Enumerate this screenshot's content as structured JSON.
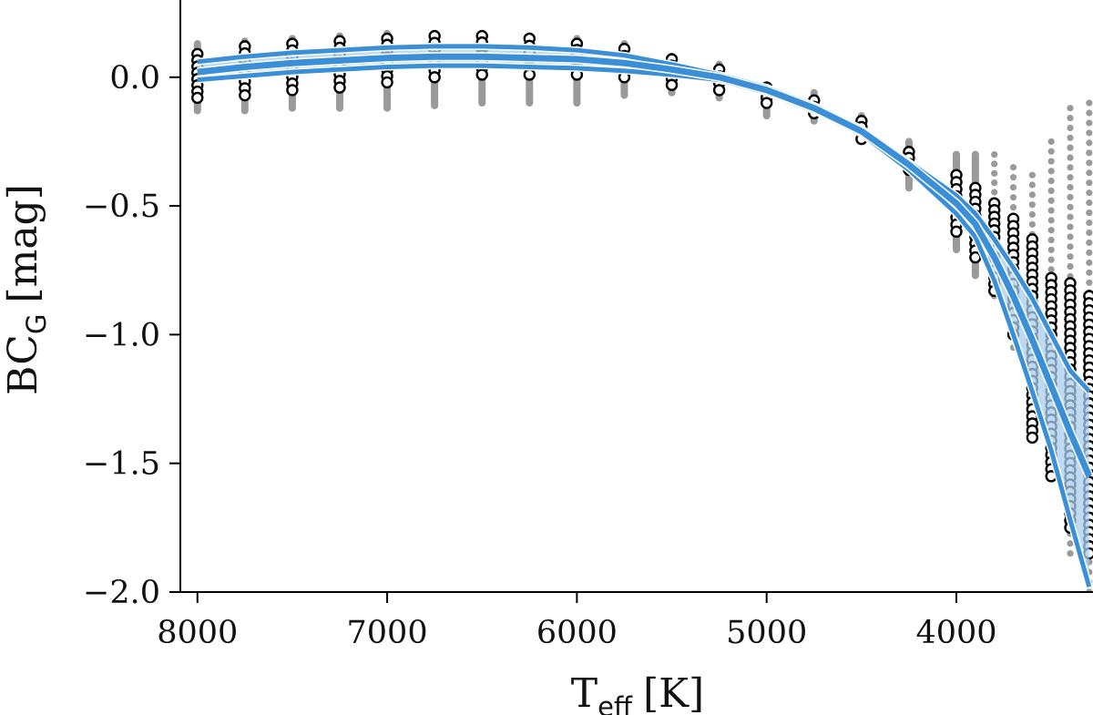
{
  "chart_data": {
    "type": "scatter",
    "title": "",
    "xlabel": "T",
    "xlabel_sub": "eff",
    "xlabel_unit": "[K]",
    "ylabel": "BC",
    "ylabel_sub": "G",
    "ylabel_unit": "[mag]",
    "x_reversed": true,
    "xlim": [
      8090,
      3280
    ],
    "ylim": [
      -2.0,
      0.3
    ],
    "xticks": [
      8000,
      7000,
      6000,
      5000,
      4000
    ],
    "xtick_labels": [
      "8000",
      "7000",
      "6000",
      "5000",
      "4000"
    ],
    "yticks": [
      0.0,
      -0.5,
      -1.0,
      -1.5,
      -2.0
    ],
    "ytick_labels": [
      "0.0",
      "−0.5",
      "−1.0",
      "−1.5",
      "−2.0"
    ],
    "grid": false,
    "colors": {
      "model_points": "#9a9a9a",
      "observed_points": "#000000",
      "fit_line": "#3a8fd6",
      "fit_band": "#a8cdef"
    },
    "temperature_grid": [
      8000,
      7750,
      7500,
      7250,
      7000,
      6750,
      6500,
      6250,
      6000,
      5750,
      5500,
      5250,
      5000,
      4750,
      4500,
      4250,
      4000,
      3900,
      3800,
      3700,
      3600,
      3500,
      3400,
      3300
    ],
    "series": [
      {
        "kind": "grey-model-spread",
        "x": [
          8000,
          7750,
          7500,
          7250,
          7000,
          6750,
          6500,
          6250,
          6000,
          5750,
          5500,
          5250,
          5000,
          4750,
          4500,
          4250,
          4000,
          3900,
          3800,
          3700,
          3600,
          3500,
          3400,
          3300
        ],
        "ymin": [
          -0.13,
          -0.13,
          -0.12,
          -0.12,
          -0.12,
          -0.11,
          -0.1,
          -0.1,
          -0.1,
          -0.07,
          -0.06,
          -0.08,
          -0.15,
          -0.17,
          -0.24,
          -0.43,
          -0.67,
          -0.77,
          -0.85,
          -1.05,
          -1.3,
          -1.55,
          -1.85,
          -2.0
        ],
        "ymax": [
          0.13,
          0.14,
          0.15,
          0.16,
          0.17,
          0.17,
          0.17,
          0.16,
          0.15,
          0.13,
          0.08,
          0.05,
          -0.03,
          -0.06,
          -0.15,
          -0.25,
          -0.3,
          -0.3,
          -0.3,
          -0.35,
          -0.38,
          -0.25,
          -0.12,
          -0.1
        ]
      },
      {
        "kind": "open-circle-observed",
        "x": [
          8000,
          7750,
          7500,
          7250,
          7000,
          6750,
          6500,
          6250,
          6000,
          5750,
          5500,
          5250,
          5000,
          4750,
          4500,
          4250,
          4000,
          3900,
          3800,
          3700,
          3600,
          3500,
          3400,
          3300
        ],
        "ymin": [
          -0.08,
          -0.07,
          -0.05,
          -0.04,
          -0.02,
          0.0,
          0.01,
          0.01,
          0.01,
          0.0,
          -0.03,
          -0.05,
          -0.1,
          -0.14,
          -0.24,
          -0.36,
          -0.6,
          -0.7,
          -0.83,
          -1.0,
          -1.4,
          -1.55,
          -1.75,
          -1.85
        ],
        "ymax": [
          0.09,
          0.12,
          0.13,
          0.14,
          0.15,
          0.16,
          0.16,
          0.15,
          0.13,
          0.11,
          0.07,
          0.03,
          -0.04,
          -0.09,
          -0.17,
          -0.29,
          -0.38,
          -0.43,
          -0.49,
          -0.55,
          -0.63,
          -0.78,
          -0.8,
          -0.85
        ]
      },
      {
        "kind": "fit-median",
        "x": [
          8000,
          7750,
          7500,
          7250,
          7000,
          6750,
          6500,
          6250,
          6000,
          5750,
          5500,
          5250,
          5000,
          4750,
          4500,
          4250,
          4000,
          3900,
          3800,
          3700,
          3600,
          3500,
          3400,
          3300
        ],
        "y": [
          0.02,
          0.04,
          0.055,
          0.065,
          0.075,
          0.08,
          0.08,
          0.075,
          0.07,
          0.055,
          0.03,
          0.0,
          -0.05,
          -0.12,
          -0.21,
          -0.34,
          -0.49,
          -0.57,
          -0.7,
          -0.85,
          -1.02,
          -1.2,
          -1.38,
          -1.55
        ]
      },
      {
        "kind": "fit-upper",
        "x": [
          8000,
          7750,
          7500,
          7250,
          7000,
          6750,
          6500,
          6250,
          6000,
          5750,
          5500,
          5250,
          5000,
          4750,
          4500,
          4250,
          4000,
          3900,
          3800,
          3700,
          3600,
          3500,
          3400,
          3300
        ],
        "y": [
          0.06,
          0.08,
          0.095,
          0.105,
          0.115,
          0.12,
          0.12,
          0.115,
          0.105,
          0.085,
          0.05,
          0.01,
          -0.04,
          -0.11,
          -0.2,
          -0.33,
          -0.46,
          -0.53,
          -0.63,
          -0.74,
          -0.86,
          -1.0,
          -1.14,
          -1.22
        ]
      },
      {
        "kind": "fit-lower",
        "x": [
          8000,
          7750,
          7500,
          7250,
          7000,
          6750,
          6500,
          6250,
          6000,
          5750,
          5500,
          5250,
          5000,
          4750,
          4500,
          4250,
          4000,
          3900,
          3800,
          3700,
          3600,
          3500,
          3400,
          3300
        ],
        "y": [
          -0.01,
          0.005,
          0.02,
          0.03,
          0.04,
          0.045,
          0.045,
          0.04,
          0.035,
          0.025,
          0.01,
          -0.01,
          -0.06,
          -0.13,
          -0.22,
          -0.36,
          -0.53,
          -0.62,
          -0.79,
          -1.0,
          -1.22,
          -1.45,
          -1.72,
          -1.98
        ]
      }
    ]
  }
}
